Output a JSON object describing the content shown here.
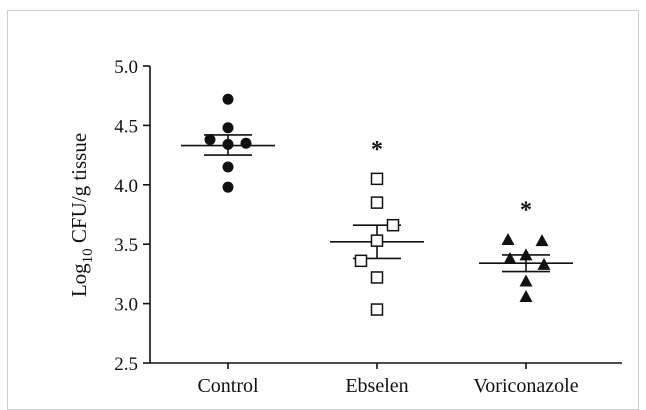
{
  "chart_data": {
    "type": "scatter",
    "title": "",
    "xlabel": "",
    "ylabel": {
      "prefix": "Log",
      "sub": "10",
      "rest": " CFU/g tissue"
    },
    "ylim": [
      2.5,
      5.0
    ],
    "yticks": [
      "2.5",
      "3.0",
      "3.5",
      "4.0",
      "4.5",
      "5.0"
    ],
    "grid": false,
    "categories": [
      "Control",
      "Ebselen",
      "Voriconazole"
    ],
    "series": [
      {
        "category": "Control",
        "marker": "filled-circle",
        "values": [
          4.72,
          4.48,
          4.38,
          4.35,
          4.34,
          4.15,
          3.98
        ],
        "mean": 4.33,
        "sem_upper": 4.42,
        "sem_lower": 4.25,
        "annotation": ""
      },
      {
        "category": "Ebselen",
        "marker": "open-square",
        "values": [
          4.05,
          3.85,
          3.66,
          3.53,
          3.36,
          3.22,
          2.95
        ],
        "mean": 3.52,
        "sem_upper": 3.66,
        "sem_lower": 3.38,
        "annotation": "*"
      },
      {
        "category": "Voriconazole",
        "marker": "filled-triangle",
        "values": [
          3.54,
          3.53,
          3.41,
          3.38,
          3.33,
          3.19,
          3.06
        ],
        "mean": 3.34,
        "sem_upper": 3.41,
        "sem_lower": 3.27,
        "annotation": "*"
      }
    ]
  }
}
